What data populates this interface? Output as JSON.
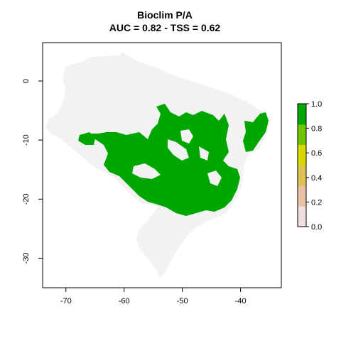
{
  "title": "Bioclim P/A",
  "subtitle": "AUC = 0.82 - TSS = 0.62",
  "x_axis": {
    "range": [
      -74,
      -33
    ],
    "ticks": [
      "-70",
      "-60",
      "-50",
      "-40"
    ],
    "tick_values": [
      -70,
      -60,
      -50,
      -40
    ]
  },
  "y_axis": {
    "range": [
      -35,
      6.5
    ],
    "ticks": [
      "0",
      "-10",
      "-20",
      "-30"
    ],
    "tick_values": [
      0,
      -10,
      -20,
      -30
    ]
  },
  "legend": {
    "ticks": [
      "0.0",
      "0.2",
      "0.4",
      "0.6",
      "0.8",
      "1.0"
    ],
    "tick_values": [
      0,
      0.2,
      0.4,
      0.6,
      0.8,
      1.0
    ],
    "colors": [
      "#f2e0e0",
      "#e9c2a6",
      "#e0c050",
      "#d8d800",
      "#6ec400",
      "#00a600"
    ]
  },
  "colors": {
    "absence": "#f2f2f2",
    "presence": "#00a600"
  }
}
